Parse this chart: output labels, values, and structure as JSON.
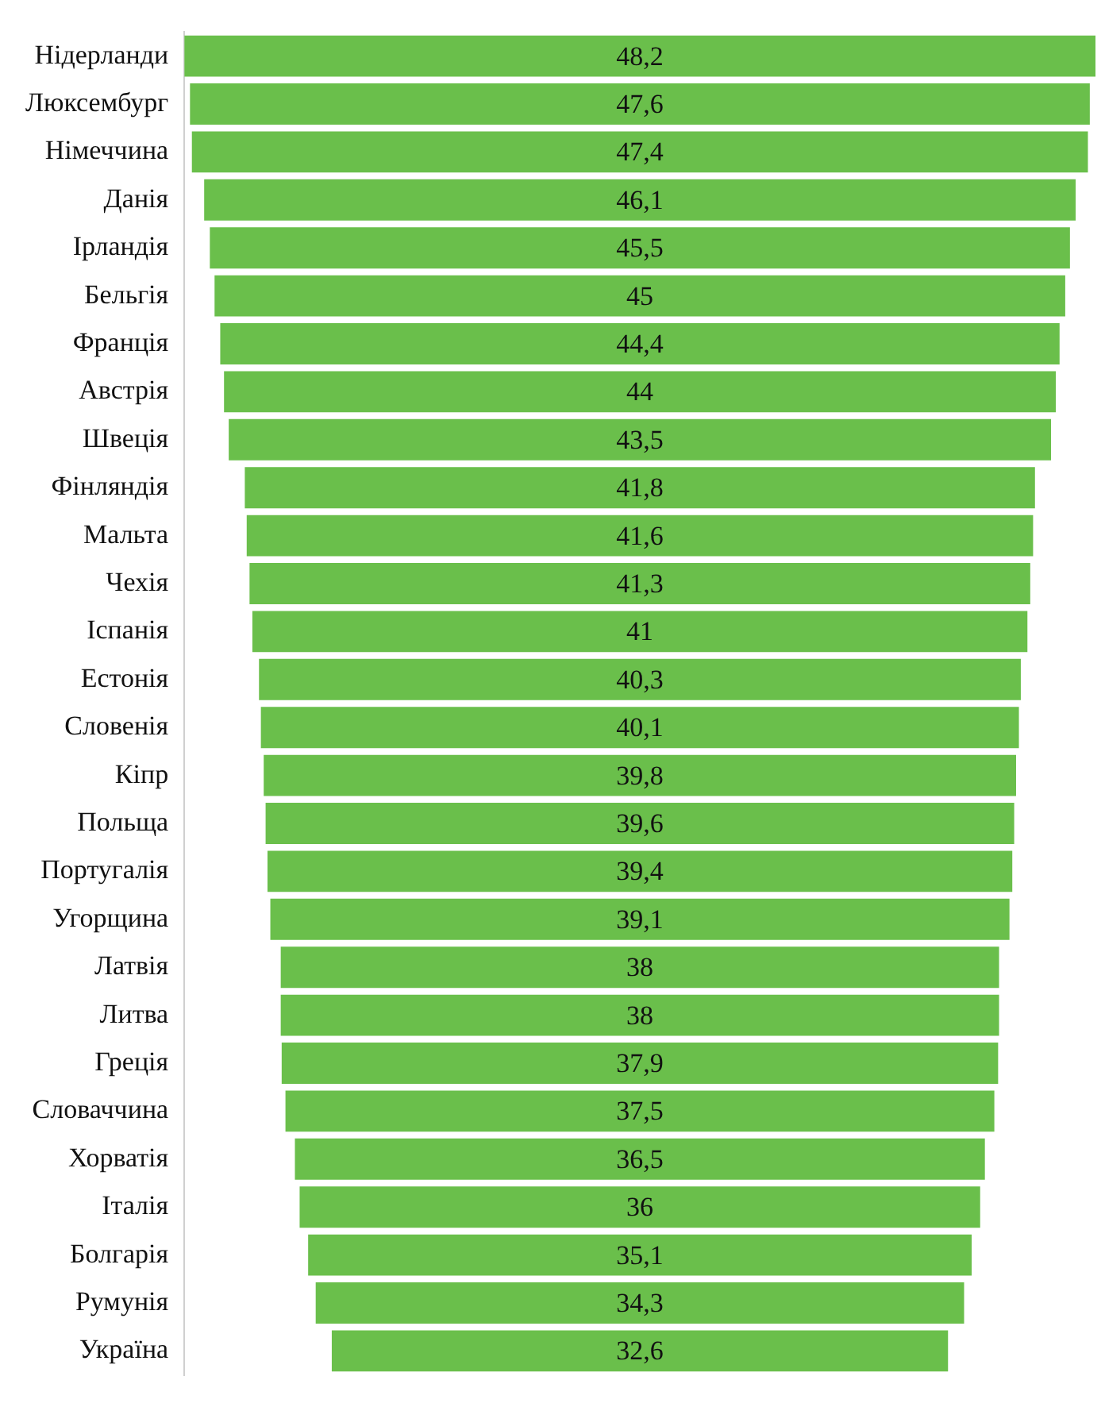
{
  "chart_data": {
    "type": "other",
    "categories": [
      "Нідерланди",
      "Люксембург",
      "Німеччина",
      "Данія",
      "Ірландія",
      "Бельгія",
      "Франція",
      "Австрія",
      "Швеція",
      "Фінляндія",
      "Мальта",
      "Чехія",
      "Іспанія",
      "Естонія",
      "Словенія",
      "Кіпр",
      "Польща",
      "Португалія",
      "Угорщина",
      "Латвія",
      "Литва",
      "Греція",
      "Словаччина",
      "Хорватія",
      "Італія",
      "Болгарія",
      "Румунія",
      "Україна"
    ],
    "values": [
      48.2,
      47.6,
      47.4,
      46.1,
      45.5,
      45,
      44.4,
      44,
      43.5,
      41.8,
      41.6,
      41.3,
      41,
      40.3,
      40.1,
      39.8,
      39.6,
      39.4,
      39.1,
      38,
      38,
      37.9,
      37.5,
      36.5,
      36,
      35.1,
      34.3,
      32.6
    ],
    "value_labels": [
      "48,2",
      "47,6",
      "47,4",
      "46,1",
      "45,5",
      "45",
      "44,4",
      "44",
      "43,5",
      "41,8",
      "41,6",
      "41,3",
      "41",
      "40,3",
      "40,1",
      "39,8",
      "39,6",
      "39,4",
      "39,1",
      "38",
      "38",
      "37,9",
      "37,5",
      "36,5",
      "36",
      "35,1",
      "34,3",
      "32,6"
    ],
    "color": "#6abf4b"
  }
}
